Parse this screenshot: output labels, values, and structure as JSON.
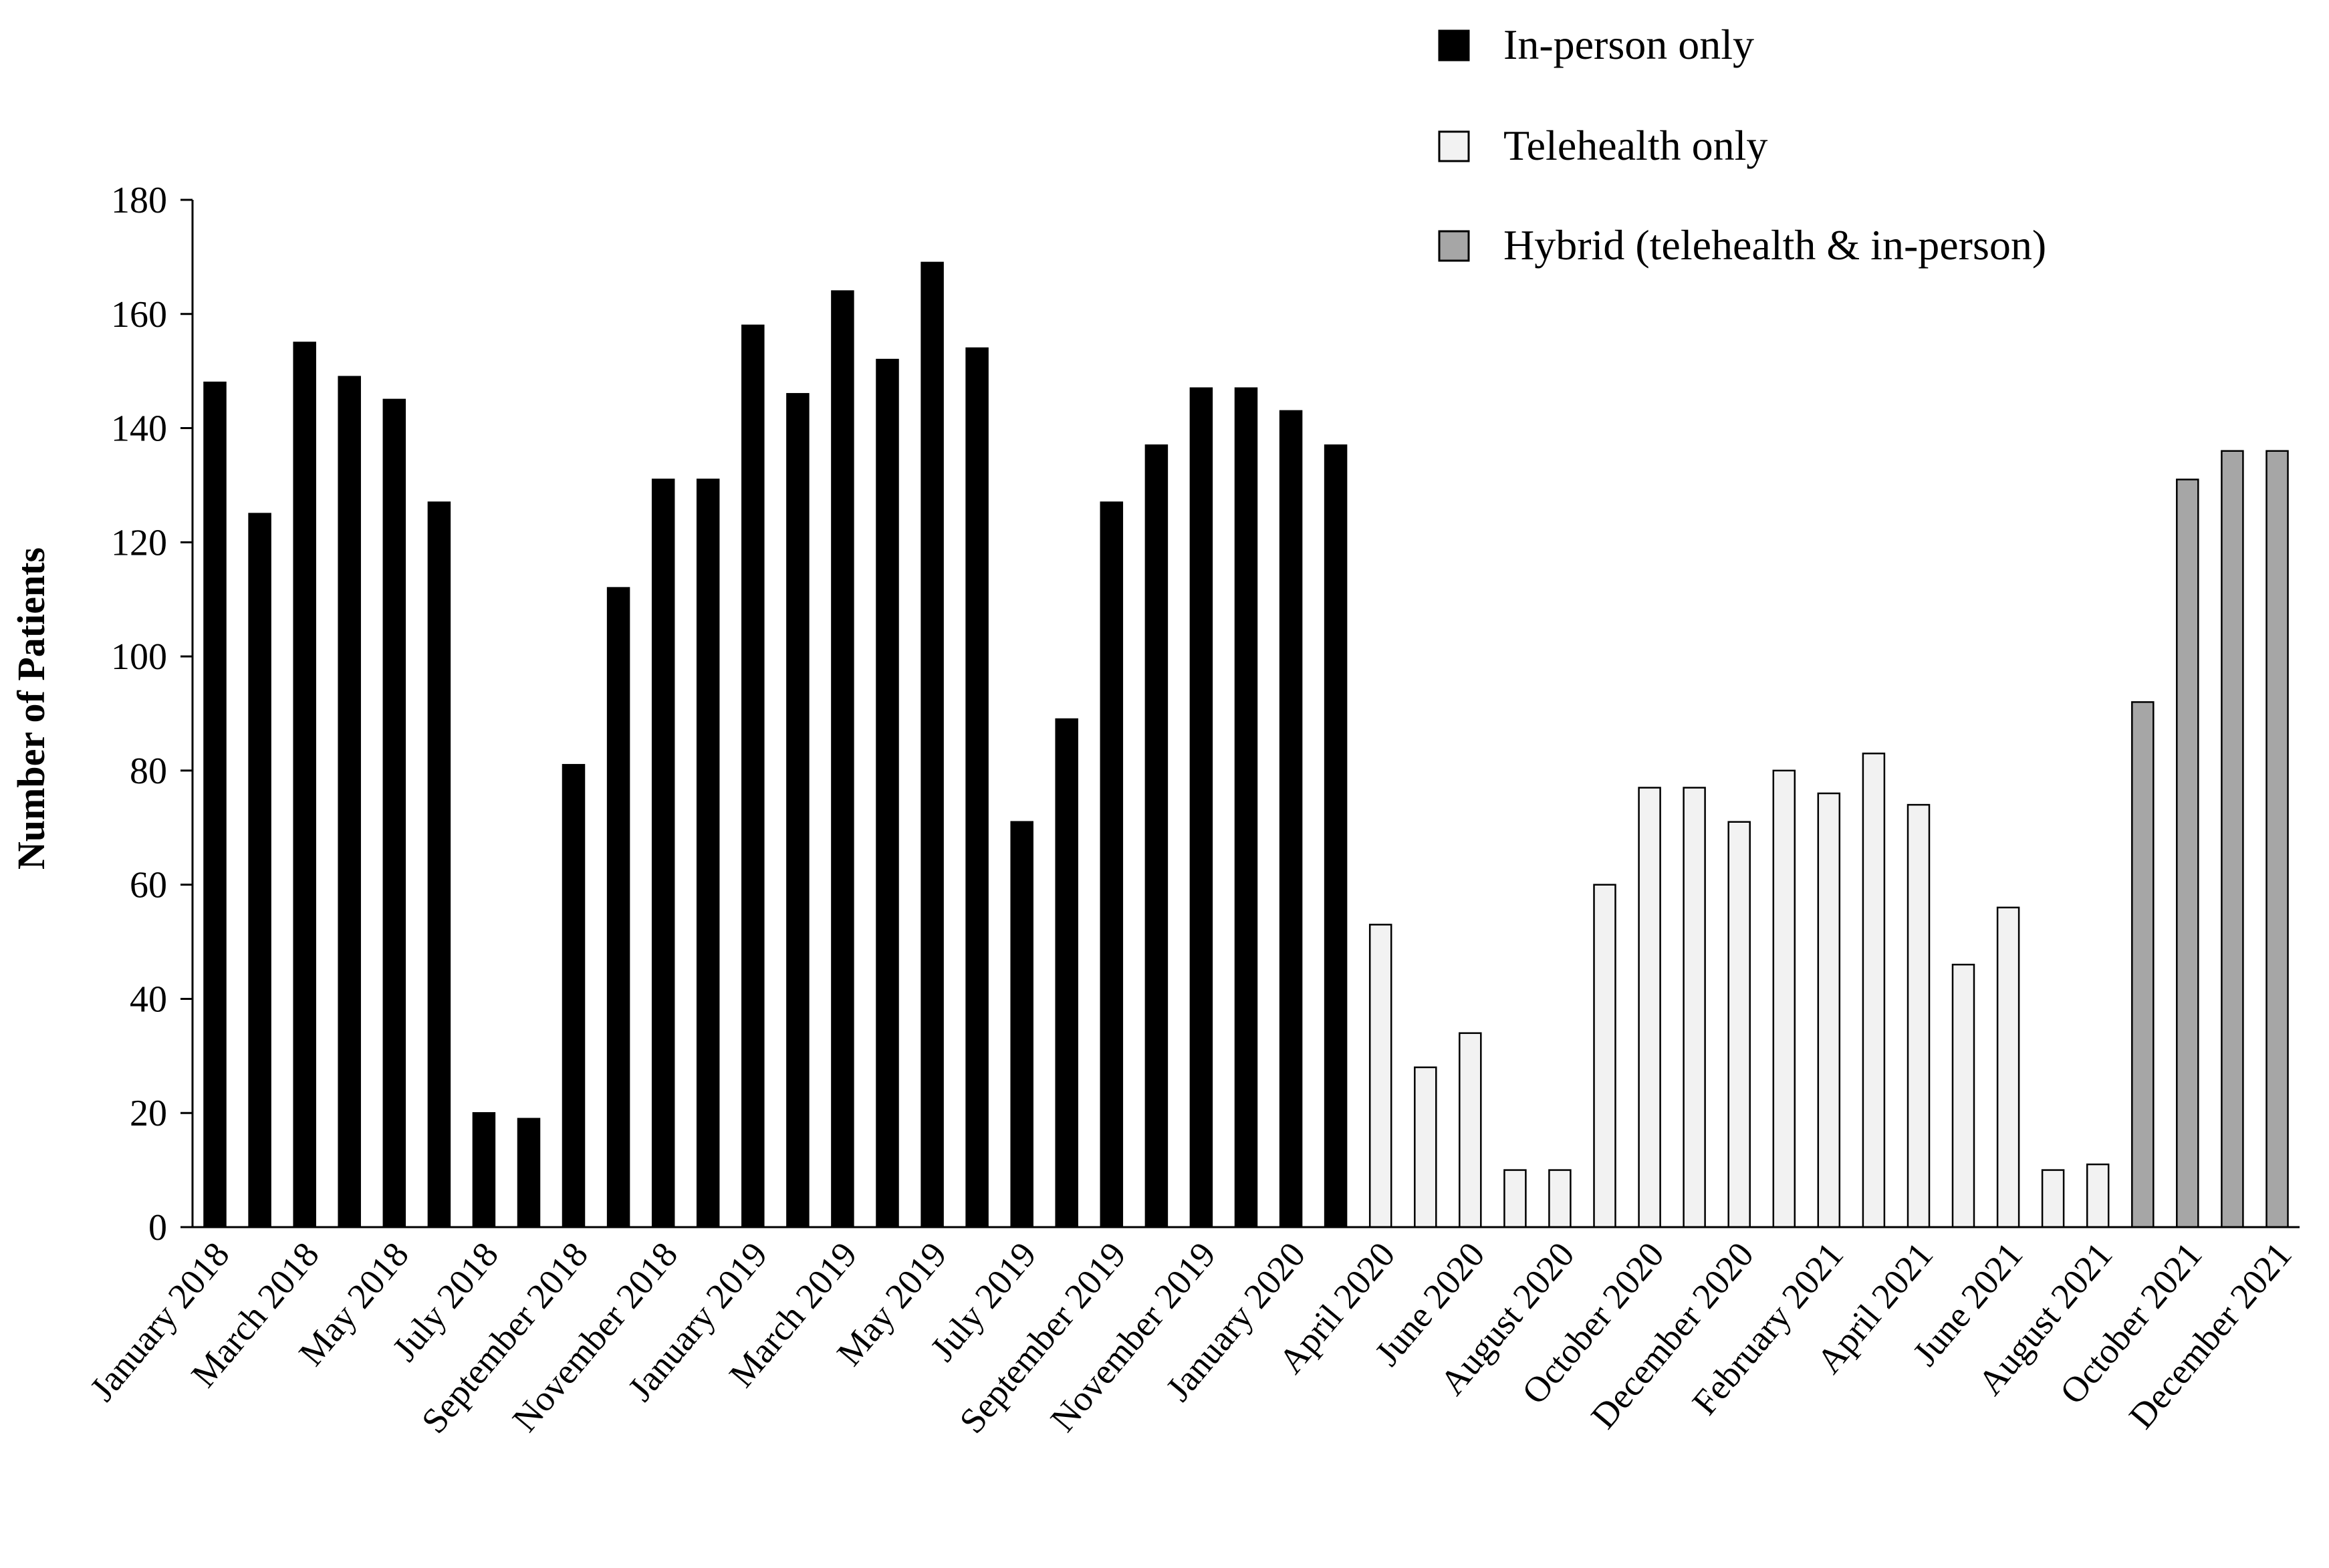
{
  "chart_data": {
    "type": "bar",
    "title": "",
    "xlabel": "",
    "ylabel": "Number of Patients",
    "ylim": [
      0,
      180
    ],
    "yticks": [
      0,
      20,
      40,
      60,
      80,
      100,
      120,
      140,
      160,
      180
    ],
    "grid": false,
    "legend_position": "top-right",
    "months": [
      "January 2018",
      "February 2018",
      "March 2018",
      "April 2018",
      "May 2018",
      "June 2018",
      "July 2018",
      "August 2018",
      "September 2018",
      "October 2018",
      "November 2018",
      "December 2018",
      "January 2019",
      "February 2019",
      "March 2019",
      "April 2019",
      "May 2019",
      "June 2019",
      "July 2019",
      "August 2019",
      "September 2019",
      "October 2019",
      "November 2019",
      "December 2019",
      "January 2020",
      "February 2020",
      "April 2020",
      "May 2020",
      "June 2020",
      "July 2020",
      "August 2020",
      "September 2020",
      "October 2020",
      "November 2020",
      "December 2020",
      "January 2021",
      "February 2021",
      "March 2021",
      "April 2021",
      "May 2021",
      "June 2021",
      "July 2021",
      "August 2021",
      "September 2021",
      "October 2021",
      "November 2021",
      "December 2021"
    ],
    "tick_labels": [
      "January 2018",
      "March 2018",
      "May 2018",
      "July 2018",
      "September 2018",
      "November 2018",
      "January 2019",
      "March 2019",
      "May 2019",
      "July 2019",
      "September 2019",
      "November 2019",
      "January 2020",
      "April 2020",
      "June 2020",
      "August 2020",
      "October 2020",
      "December 2020",
      "February 2021",
      "April 2021",
      "June 2021",
      "August 2021",
      "October 2021",
      "December 2021"
    ],
    "values": [
      148,
      125,
      155,
      149,
      145,
      127,
      20,
      19,
      81,
      112,
      131,
      131,
      158,
      146,
      164,
      152,
      169,
      154,
      71,
      89,
      127,
      137,
      147,
      147,
      143,
      137,
      53,
      28,
      34,
      10,
      10,
      60,
      77,
      77,
      71,
      80,
      76,
      83,
      74,
      46,
      56,
      10,
      11,
      92,
      131,
      136,
      136
    ],
    "groups": [
      "in-person",
      "in-person",
      "in-person",
      "in-person",
      "in-person",
      "in-person",
      "in-person",
      "in-person",
      "in-person",
      "in-person",
      "in-person",
      "in-person",
      "in-person",
      "in-person",
      "in-person",
      "in-person",
      "in-person",
      "in-person",
      "in-person",
      "in-person",
      "in-person",
      "in-person",
      "in-person",
      "in-person",
      "in-person",
      "in-person",
      "telehealth",
      "telehealth",
      "telehealth",
      "telehealth",
      "telehealth",
      "telehealth",
      "telehealth",
      "telehealth",
      "telehealth",
      "telehealth",
      "telehealth",
      "telehealth",
      "telehealth",
      "telehealth",
      "telehealth",
      "telehealth",
      "telehealth",
      "hybrid",
      "hybrid",
      "hybrid",
      "hybrid"
    ],
    "series": [
      {
        "key": "in-person",
        "name": "In-person only",
        "color": "#000000"
      },
      {
        "key": "telehealth",
        "name": "Telehealth only",
        "color": "#f2f2f2"
      },
      {
        "key": "hybrid",
        "name": "Hybrid (telehealth & in-person)",
        "color": "#a6a6a6"
      }
    ]
  }
}
